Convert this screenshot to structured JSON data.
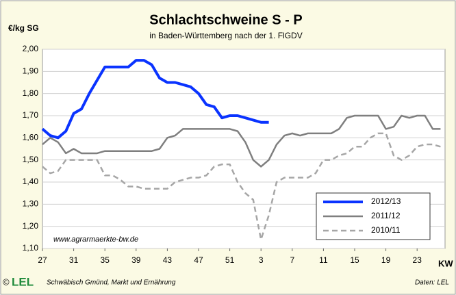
{
  "chart_data": {
    "type": "line",
    "title": "Schlachtschweine S - P",
    "subtitle": "in Baden-Württemberg nach der 1. FlGDV",
    "y_label": "€/kg SG",
    "x_label": "KW",
    "annotations": [
      "www.agrarmaerkte-bw.de",
      "Schwäbisch Gmünd, Markt und Ernährung",
      "Daten: LEL"
    ],
    "logo": "LEL",
    "copyright": "©",
    "categories": [
      "27",
      null,
      null,
      null,
      "31",
      null,
      null,
      null,
      "35",
      null,
      null,
      null,
      "39",
      null,
      null,
      null,
      "43",
      null,
      null,
      null,
      "47",
      null,
      null,
      null,
      "51",
      null,
      null,
      null,
      "3",
      null,
      null,
      null,
      "7",
      null,
      null,
      null,
      "11",
      null,
      null,
      null,
      "15",
      null,
      null,
      null,
      "19",
      null,
      null,
      null,
      "23",
      null,
      null,
      null
    ],
    "series": [
      {
        "name": "2012/13",
        "color": "#0a33ff",
        "style": "solid",
        "width": 4,
        "values": [
          1.64,
          1.61,
          1.6,
          1.63,
          1.71,
          1.73,
          1.8,
          1.86,
          1.92,
          1.92,
          1.92,
          1.92,
          1.95,
          1.95,
          1.93,
          1.87,
          1.85,
          1.85,
          1.84,
          1.83,
          1.8,
          1.75,
          1.74,
          1.69,
          1.7,
          1.7,
          1.69,
          1.68,
          1.67,
          1.67,
          null,
          null,
          null,
          null,
          null,
          null,
          null,
          null,
          null,
          null,
          null,
          null,
          null,
          null,
          null,
          null,
          null,
          null,
          null,
          null,
          null,
          null
        ]
      },
      {
        "name": "2011/12",
        "color": "#7f7f7f",
        "style": "solid",
        "width": 2.5,
        "values": [
          1.57,
          1.6,
          1.58,
          1.53,
          1.55,
          1.53,
          1.53,
          1.53,
          1.54,
          1.54,
          1.54,
          1.54,
          1.54,
          1.54,
          1.54,
          1.55,
          1.6,
          1.61,
          1.64,
          1.64,
          1.64,
          1.64,
          1.64,
          1.64,
          1.64,
          1.63,
          1.58,
          1.5,
          1.47,
          1.5,
          1.57,
          1.61,
          1.62,
          1.61,
          1.62,
          1.62,
          1.62,
          1.62,
          1.64,
          1.69,
          1.7,
          1.7,
          1.7,
          1.7,
          1.64,
          1.65,
          1.7,
          1.69,
          1.7,
          1.7,
          1.64,
          1.64
        ]
      },
      {
        "name": "2010/11",
        "color": "#a6a6a6",
        "style": "dashed",
        "width": 2.5,
        "values": [
          1.47,
          1.44,
          1.45,
          1.5,
          1.5,
          1.5,
          1.5,
          1.5,
          1.43,
          1.43,
          1.41,
          1.38,
          1.38,
          1.37,
          1.37,
          1.37,
          1.37,
          1.4,
          1.41,
          1.42,
          1.42,
          1.43,
          1.47,
          1.48,
          1.48,
          1.4,
          1.35,
          1.32,
          1.14,
          1.25,
          1.4,
          1.42,
          1.42,
          1.42,
          1.42,
          1.44,
          1.5,
          1.5,
          1.52,
          1.53,
          1.56,
          1.56,
          1.6,
          1.62,
          1.62,
          1.52,
          1.5,
          1.52,
          1.56,
          1.57,
          1.57,
          1.56
        ]
      }
    ],
    "ylim": [
      1.1,
      2.0
    ],
    "yticks": [
      {
        "value": 1.1,
        "label": "1,10"
      },
      {
        "value": 1.2,
        "label": "1,20"
      },
      {
        "value": 1.3,
        "label": "1,30"
      },
      {
        "value": 1.4,
        "label": "1,40"
      },
      {
        "value": 1.5,
        "label": "1,50"
      },
      {
        "value": 1.6,
        "label": "1,60"
      },
      {
        "value": 1.7,
        "label": "1,70"
      },
      {
        "value": 1.8,
        "label": "1,80"
      },
      {
        "value": 1.9,
        "label": "1,90"
      },
      {
        "value": 2.0,
        "label": "2,00"
      }
    ],
    "grid": true,
    "legend": "lower right"
  }
}
